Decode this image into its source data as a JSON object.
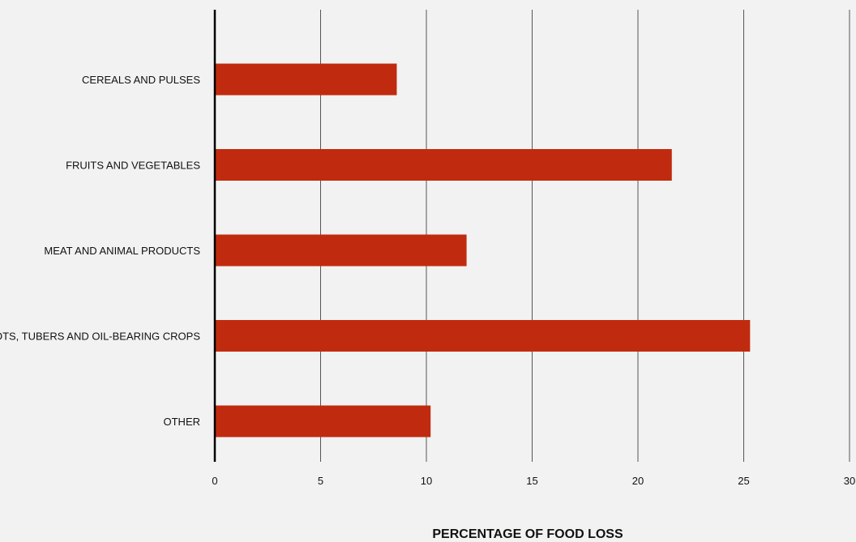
{
  "chart_data": {
    "type": "bar",
    "orientation": "horizontal",
    "categories": [
      "CEREALS AND PULSES",
      "FRUITS AND VEGETABLES",
      "MEAT AND ANIMAL PRODUCTS",
      "ROOTS, TUBERS AND OIL-BEARING CROPS",
      "OTHER"
    ],
    "values": [
      8.6,
      21.6,
      11.9,
      25.3,
      10.2
    ],
    "xlabel": "PERCENTAGE OF FOOD LOSS",
    "ylabel": "",
    "xlim": [
      0,
      30
    ],
    "xticks": [
      0,
      5,
      10,
      15,
      20,
      25,
      30
    ],
    "grid": "vertical",
    "legend": "none",
    "colors": {
      "bar": "#c02b0f",
      "grid": "#555555",
      "axis": "#000000",
      "background": "#f2f2f2"
    }
  }
}
